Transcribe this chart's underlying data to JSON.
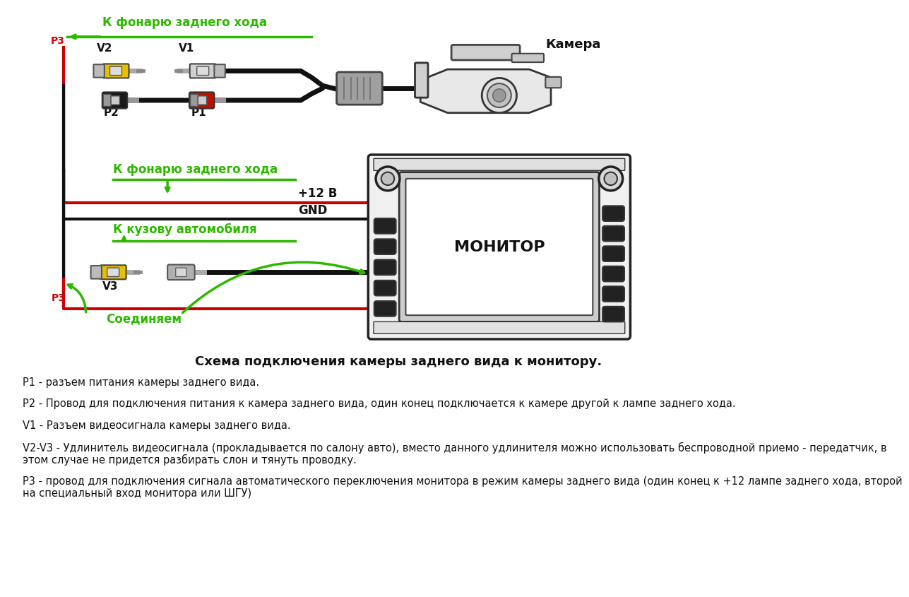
{
  "bg_color": "#ffffff",
  "green_color": "#2db800",
  "red_color": "#cc0000",
  "black_color": "#111111",
  "yellow_color": "#e8c000",
  "gray_color": "#888888",
  "label_p3_top": "P3",
  "label_v2": "V2",
  "label_v1": "V1",
  "label_p2": "P2",
  "label_p1": "P1",
  "label_camera": "Камера",
  "label_monitor": "МОНИТОР",
  "label_k_fonarju1": "К фонарю заднего хода",
  "label_k_fonarju2": "К фонарю заднего хода",
  "label_k_kuzovu": "К кузову автомобиля",
  "label_plus12": "+12 В",
  "label_gnd": "GND",
  "label_v3": "V3",
  "label_p3_bot": "P3",
  "label_soed": "Соединяем",
  "desc_title": "Схема подключения камеры заднего вида к монитору.",
  "desc_p1": "Р1 - разъем питания камеры заднего вида.",
  "desc_p2": "Р2 - Провод для подключения питания к камера заднего вида, один конец подключается к камере другой к лампе заднего хода.",
  "desc_v1": "V1 - Разъем видеосигнала камеры заднего вида.",
  "desc_v2v3": "V2-V3 - Удлинитель видеосигнала (прокладывается по салону авто), вместо данного удлинителя можно использовать беспроводной приемо - передатчик, в\nэтом случае не придется разбирать слон и тянуть проводку.",
  "desc_p3": "Р3 - провод для подключения сигнала автоматического переключения монитора в режим камеры заднего вида (один конец к +12 лампе заднего хода, второй\nна специальный вход монитора или ШГУ)"
}
